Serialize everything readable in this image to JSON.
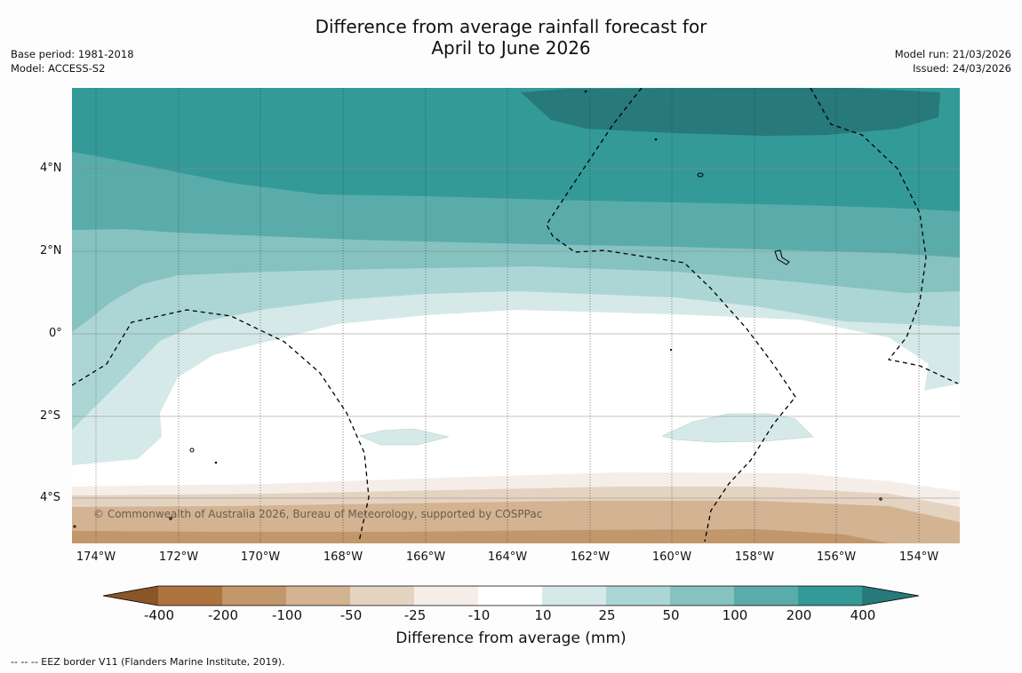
{
  "title": {
    "line1": "Difference from average rainfall forecast for",
    "line2": "April to June 2026"
  },
  "meta_left": {
    "base_period": "Base period: 1981-2018",
    "model": "Model: ACCESS-S2"
  },
  "meta_right": {
    "model_run": "Model run: 21/03/2026",
    "issued": "Issued: 24/03/2026"
  },
  "map": {
    "lat_labels": [
      "4°N",
      "2°N",
      "0°",
      "2°S",
      "4°S"
    ],
    "lon_labels": [
      "174°W",
      "172°W",
      "170°W",
      "168°W",
      "166°W",
      "164°W",
      "162°W",
      "160°W",
      "158°W",
      "156°W",
      "154°W"
    ],
    "copyright": "© Commonwealth of Australia 2026, Bureau of Meteorology, supported by COSPPac"
  },
  "colorbar": {
    "labels": [
      "-400",
      "-200",
      "-100",
      "-50",
      "-25",
      "-10",
      "10",
      "25",
      "50",
      "100",
      "200",
      "400"
    ],
    "colors": {
      "lt_neg400": "#8a5528",
      "neg400_neg200": "#ad743d",
      "neg200_neg100": "#c1976b",
      "neg100_neg50": "#d4b392",
      "neg50_neg25": "#e5d3c2",
      "neg25_neg10": "#f5eee8",
      "neg10_10": "#ffffff",
      "p10_25": "#d5e9e8",
      "p25_50": "#acd6d5",
      "p50_100": "#85c2c0",
      "p100_200": "#5aacab",
      "p200_400": "#339a98",
      "gt_400": "#27797a"
    },
    "title": "Difference from average (mm)"
  },
  "footnote": "--  --  -- EEZ border V11 (Flanders Marine Institute, 2019)."
}
